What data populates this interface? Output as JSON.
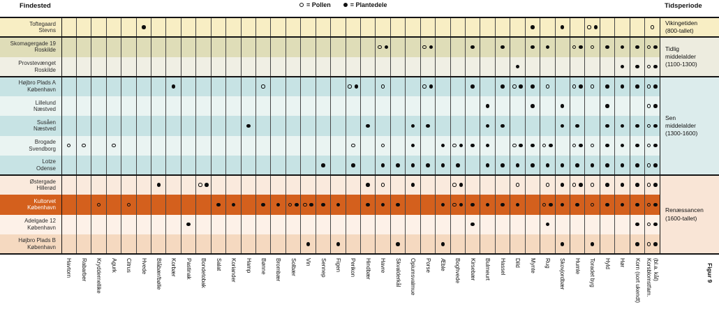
{
  "chart_data": {
    "type": "table",
    "title_left": "Findested",
    "title_right": "Tidsperiode",
    "figure_label": "Figur 9",
    "legend": {
      "pollen": "= Pollen",
      "plantedele": "= Plantedele"
    },
    "value_legend": {
      "P": "Pollen (open circle)",
      "D": "Plantedele (filled circle)",
      "PD": "both pollen and plantedele"
    },
    "colors": {
      "highlight_row": "#d4601d",
      "divider": "#141414",
      "gridline": "#454545"
    },
    "columns": [
      "Havtorn",
      "Rabarber",
      "Kryddernellike",
      "Agurk",
      "Citrus",
      "Hvede",
      "Blåbær/bølle",
      "Korbær",
      "Pastinak",
      "Bondetobak",
      "Salat",
      "Koriander",
      "Hamp",
      "Bønne",
      "Brombær",
      "Solbær",
      "Vin",
      "Sennep",
      "Figen",
      "Perikon",
      "Hindbær",
      "Havre",
      "Skvalderkål",
      "Opiumsvalmue",
      "Porse",
      "Æble",
      "Boghvede",
      "Kirsebær",
      "Bulmeurt",
      "Hassel",
      "Dild",
      "Mynte",
      "Rug",
      "Skovjordbær",
      "Humle",
      "Toradet byg",
      "Hyld",
      "Hør",
      "Korn (sort ukendt)",
      "Korsblomstfam.\n(bl.a. kål)"
    ],
    "rows": [
      {
        "site": "Toftegaard",
        "city": "Stevns",
        "bg": "#f8eec4"
      },
      {
        "site": "Skomagergade 19",
        "city": "Roskilde",
        "bg": "#dfddb8"
      },
      {
        "site": "Provstevænget",
        "city": "Roskilde",
        "bg": "#f0efe4"
      },
      {
        "site": "Højbro Plads A",
        "city": "København",
        "bg": "#c7e3e4"
      },
      {
        "site": "Lillelund",
        "city": "Næstved",
        "bg": "#eaf4f2"
      },
      {
        "site": "Susåen",
        "city": "Næstved",
        "bg": "#c7e3e4"
      },
      {
        "site": "Brogade",
        "city": "Svendborg",
        "bg": "#eaf4f2"
      },
      {
        "site": "Lotze",
        "city": "Odense",
        "bg": "#c7e3e4"
      },
      {
        "site": "Østergade",
        "city": "Hillerød",
        "bg": "#faeadd"
      },
      {
        "site": "Kultorvet",
        "city": "København",
        "bg": "#d4601d",
        "text": "#ffffff"
      },
      {
        "site": "Adelgade 12",
        "city": "København",
        "bg": "#fdf1e8"
      },
      {
        "site": "Højbro Plads B",
        "city": "København",
        "bg": "#f5d9c0"
      }
    ],
    "periods": [
      {
        "label": "Vikingetiden\n(800-tallet)",
        "rows": [
          0,
          0
        ],
        "bg": "#f8eec4"
      },
      {
        "label": "Tidlig\nmiddelalder\n(1100-1300)",
        "rows": [
          1,
          2
        ],
        "bg": "#edecdf"
      },
      {
        "label": "Sen\nmiddelalder\n(1300-1600)",
        "rows": [
          3,
          7
        ],
        "bg": "#dcecec"
      },
      {
        "label": "Renæssancen\n(1600-tallet)",
        "rows": [
          8,
          11
        ],
        "bg": "#f9e5d6"
      }
    ],
    "marks": [
      [
        [
          6,
          "D"
        ],
        [
          32,
          "D"
        ],
        [
          34,
          "D"
        ],
        [
          36,
          "PD"
        ],
        [
          40,
          "P"
        ]
      ],
      [
        [
          22,
          "PD"
        ],
        [
          25,
          "PD"
        ],
        [
          28,
          "D"
        ],
        [
          30,
          "D"
        ],
        [
          32,
          "D"
        ],
        [
          33,
          "D"
        ],
        [
          35,
          "PD"
        ],
        [
          36,
          "P"
        ],
        [
          37,
          "D"
        ],
        [
          38,
          "D"
        ],
        [
          39,
          "D"
        ],
        [
          40,
          "PD"
        ]
      ],
      [
        [
          31,
          "D"
        ],
        [
          38,
          "D"
        ],
        [
          39,
          "D"
        ],
        [
          40,
          "PD"
        ]
      ],
      [
        [
          8,
          "D"
        ],
        [
          14,
          "P"
        ],
        [
          20,
          "PD"
        ],
        [
          22,
          "P"
        ],
        [
          25,
          "PD"
        ],
        [
          28,
          "D"
        ],
        [
          30,
          "D"
        ],
        [
          31,
          "PD"
        ],
        [
          32,
          "D"
        ],
        [
          33,
          "P"
        ],
        [
          35,
          "PD"
        ],
        [
          36,
          "P"
        ],
        [
          37,
          "D"
        ],
        [
          38,
          "D"
        ],
        [
          39,
          "D"
        ],
        [
          40,
          "PD"
        ]
      ],
      [
        [
          29,
          "D"
        ],
        [
          32,
          "D"
        ],
        [
          34,
          "D"
        ],
        [
          37,
          "D"
        ],
        [
          40,
          "PD"
        ]
      ],
      [
        [
          13,
          "D"
        ],
        [
          21,
          "D"
        ],
        [
          24,
          "D"
        ],
        [
          25,
          "D"
        ],
        [
          29,
          "D"
        ],
        [
          30,
          "D"
        ],
        [
          34,
          "D"
        ],
        [
          35,
          "D"
        ],
        [
          37,
          "D"
        ],
        [
          38,
          "D"
        ],
        [
          39,
          "D"
        ],
        [
          40,
          "PD"
        ]
      ],
      [
        [
          1,
          "P"
        ],
        [
          2,
          "P"
        ],
        [
          4,
          "P"
        ],
        [
          20,
          "P"
        ],
        [
          22,
          "P"
        ],
        [
          24,
          "D"
        ],
        [
          26,
          "D"
        ],
        [
          27,
          "PD"
        ],
        [
          28,
          "D"
        ],
        [
          29,
          "D"
        ],
        [
          31,
          "PD"
        ],
        [
          32,
          "D"
        ],
        [
          33,
          "PD"
        ],
        [
          35,
          "PD"
        ],
        [
          36,
          "P"
        ],
        [
          37,
          "D"
        ],
        [
          38,
          "D"
        ],
        [
          39,
          "D"
        ],
        [
          40,
          "PD"
        ]
      ],
      [
        [
          18,
          "D"
        ],
        [
          20,
          "D"
        ],
        [
          22,
          "D"
        ],
        [
          23,
          "D"
        ],
        [
          24,
          "D"
        ],
        [
          25,
          "D"
        ],
        [
          26,
          "D"
        ],
        [
          27,
          "D"
        ],
        [
          29,
          "D"
        ],
        [
          30,
          "D"
        ],
        [
          31,
          "D"
        ],
        [
          32,
          "D"
        ],
        [
          33,
          "D"
        ],
        [
          34,
          "D"
        ],
        [
          35,
          "D"
        ],
        [
          36,
          "D"
        ],
        [
          37,
          "D"
        ],
        [
          38,
          "D"
        ],
        [
          39,
          "D"
        ],
        [
          40,
          "PD"
        ]
      ],
      [
        [
          7,
          "D"
        ],
        [
          10,
          "PD"
        ],
        [
          21,
          "D"
        ],
        [
          22,
          "P"
        ],
        [
          24,
          "D"
        ],
        [
          27,
          "PD"
        ],
        [
          31,
          "P"
        ],
        [
          33,
          "P"
        ],
        [
          34,
          "D"
        ],
        [
          35,
          "PD"
        ],
        [
          36,
          "P"
        ],
        [
          37,
          "D"
        ],
        [
          38,
          "D"
        ],
        [
          39,
          "D"
        ],
        [
          40,
          "PD"
        ]
      ],
      [
        [
          3,
          "P"
        ],
        [
          5,
          "P"
        ],
        [
          11,
          "D"
        ],
        [
          12,
          "D"
        ],
        [
          14,
          "D"
        ],
        [
          15,
          "D"
        ],
        [
          16,
          "PD"
        ],
        [
          17,
          "PD"
        ],
        [
          18,
          "D"
        ],
        [
          19,
          "D"
        ],
        [
          21,
          "D"
        ],
        [
          22,
          "D"
        ],
        [
          23,
          "D"
        ],
        [
          26,
          "D"
        ],
        [
          27,
          "PD"
        ],
        [
          28,
          "D"
        ],
        [
          29,
          "D"
        ],
        [
          30,
          "D"
        ],
        [
          31,
          "D"
        ],
        [
          33,
          "PD"
        ],
        [
          34,
          "D"
        ],
        [
          35,
          "D"
        ],
        [
          36,
          "P"
        ],
        [
          37,
          "D"
        ],
        [
          38,
          "D"
        ],
        [
          39,
          "D"
        ],
        [
          40,
          "PD"
        ]
      ],
      [
        [
          9,
          "D"
        ],
        [
          28,
          "D"
        ],
        [
          33,
          "D"
        ],
        [
          39,
          "D"
        ],
        [
          40,
          "PD"
        ]
      ],
      [
        [
          17,
          "D"
        ],
        [
          19,
          "D"
        ],
        [
          23,
          "D"
        ],
        [
          26,
          "D"
        ],
        [
          34,
          "D"
        ],
        [
          36,
          "D"
        ],
        [
          39,
          "D"
        ],
        [
          40,
          "PD"
        ]
      ]
    ]
  }
}
